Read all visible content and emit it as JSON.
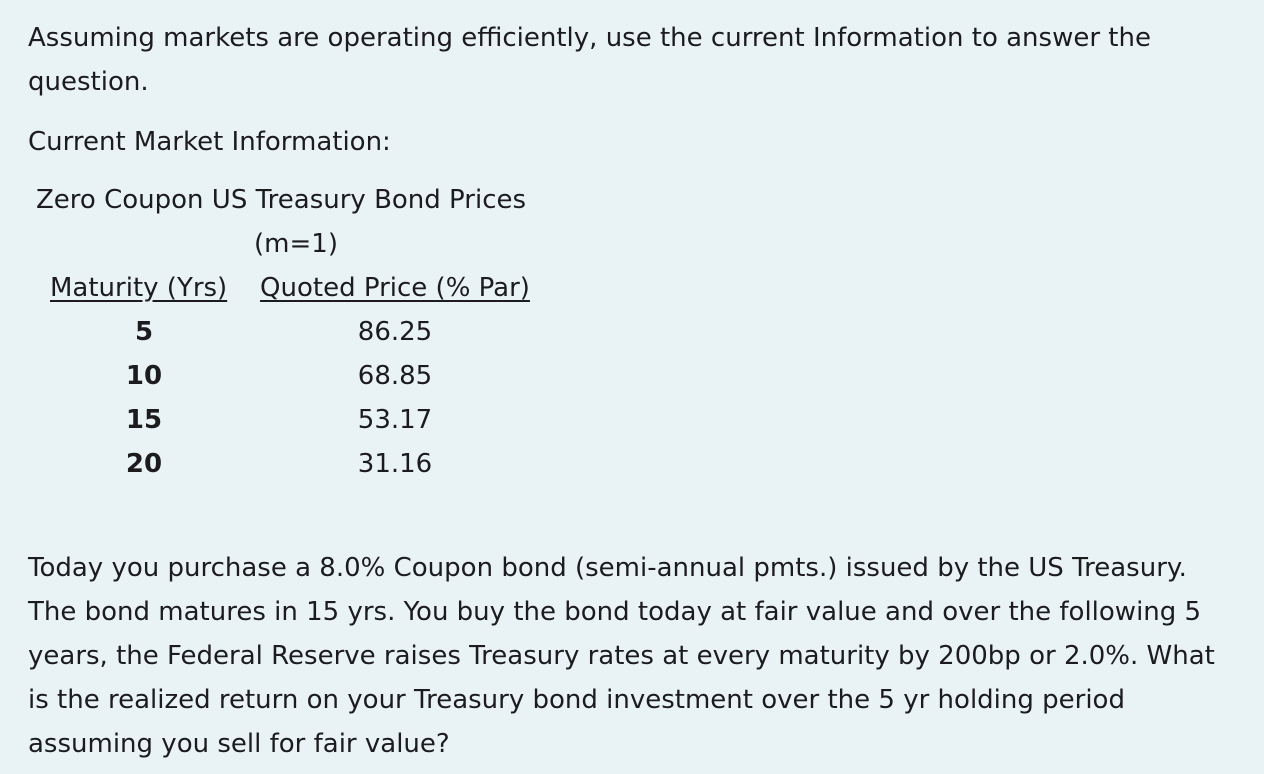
{
  "intro": "Assuming markets are operating efficiently,  use the current Information to answer the question.",
  "section_label": "Current Market Information:",
  "table": {
    "title": "Zero Coupon US Treasury Bond Prices",
    "subtitle": "(m=1)",
    "headers": {
      "maturity": "Maturity (Yrs)",
      "price": "Quoted Price (% Par)"
    },
    "rows": [
      {
        "maturity": "5",
        "price": "86.25"
      },
      {
        "maturity": "10",
        "price": "68.85"
      },
      {
        "maturity": "15",
        "price": "53.17"
      },
      {
        "maturity": "20",
        "price": "31.16"
      }
    ]
  },
  "question": "Today you purchase a 8.0% Coupon bond (semi-annual pmts.) issued by the US Treasury.  The bond matures in 15 yrs.  You buy the bond today at fair value and over the following 5 years, the Federal Reserve raises Treasury rates at every maturity by 200bp or 2.0%.  What is the realized return on your Treasury bond investment over the 5 yr holding period assuming you sell for fair value?"
}
